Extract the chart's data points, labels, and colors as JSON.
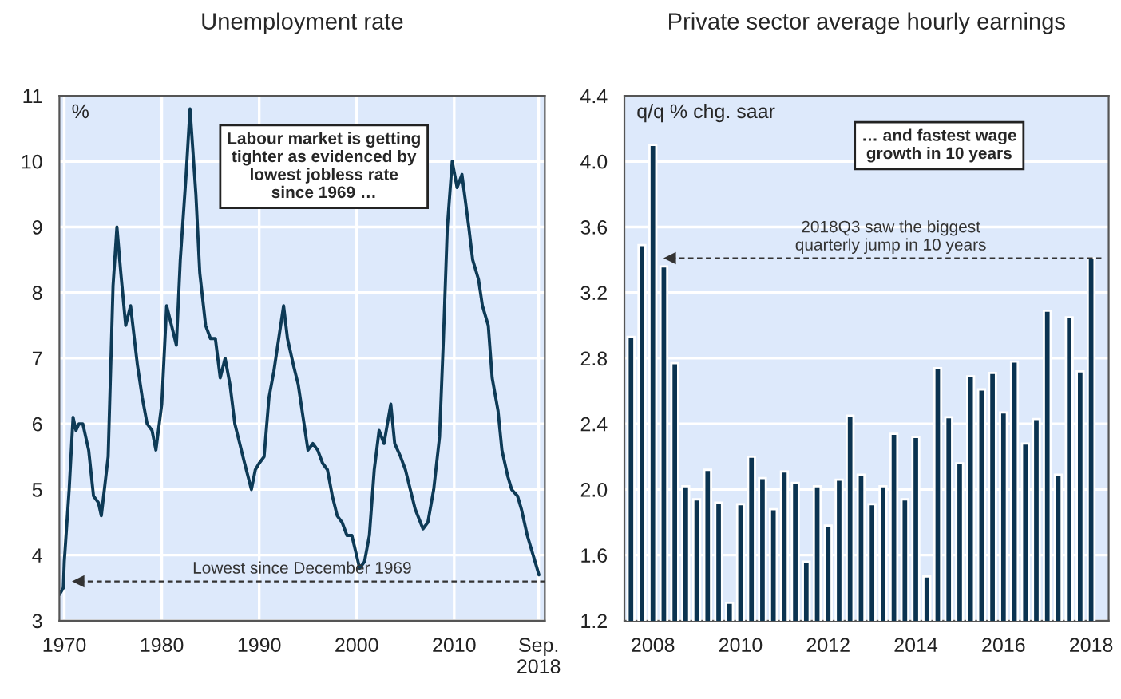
{
  "chart_data": [
    {
      "type": "line",
      "title": "Unemployment rate",
      "ylabel": "%",
      "x": [
        1969.5,
        1969.9,
        1970.0,
        1970.5,
        1970.9,
        1971.2,
        1971.5,
        1971.9,
        1972.5,
        1973.0,
        1973.5,
        1973.8,
        1974.5,
        1975.0,
        1975.4,
        1975.8,
        1976.3,
        1976.8,
        1977.5,
        1978.0,
        1978.5,
        1979.0,
        1979.4,
        1980.0,
        1980.5,
        1981.0,
        1981.5,
        1981.9,
        1982.5,
        1982.9,
        1983.5,
        1983.9,
        1984.5,
        1985.0,
        1985.5,
        1986.0,
        1986.5,
        1987.0,
        1987.5,
        1988.0,
        1988.5,
        1989.2,
        1989.6,
        1990.0,
        1990.5,
        1991.0,
        1991.5,
        1992.0,
        1992.5,
        1992.9,
        1993.5,
        1994.0,
        1994.5,
        1995.0,
        1995.5,
        1996.0,
        1996.5,
        1997.0,
        1997.5,
        1998.0,
        1998.5,
        1999.0,
        1999.5,
        2000.3,
        2000.8,
        2001.3,
        2001.8,
        2002.3,
        2002.8,
        2003.5,
        2003.9,
        2004.5,
        2005.0,
        2005.5,
        2006.0,
        2006.8,
        2007.3,
        2007.9,
        2008.5,
        2008.9,
        2009.3,
        2009.8,
        2010.3,
        2010.8,
        2011.5,
        2011.9,
        2012.5,
        2012.9,
        2013.5,
        2013.9,
        2014.5,
        2014.9,
        2015.5,
        2015.9,
        2016.5,
        2016.9,
        2017.5,
        2017.9,
        2018.3,
        2018.7
      ],
      "series": [
        {
          "color": "#0d3a56",
          "values": [
            3.4,
            3.5,
            3.9,
            5.0,
            6.1,
            5.9,
            6.0,
            6.0,
            5.6,
            4.9,
            4.8,
            4.6,
            5.5,
            8.1,
            9.0,
            8.3,
            7.5,
            7.8,
            6.9,
            6.4,
            6.0,
            5.9,
            5.6,
            6.3,
            7.8,
            7.5,
            7.2,
            8.5,
            9.8,
            10.8,
            9.5,
            8.3,
            7.5,
            7.3,
            7.3,
            6.7,
            7.0,
            6.6,
            6.0,
            5.7,
            5.4,
            5.0,
            5.3,
            5.4,
            5.5,
            6.4,
            6.8,
            7.3,
            7.8,
            7.3,
            6.9,
            6.6,
            6.1,
            5.6,
            5.7,
            5.6,
            5.4,
            5.3,
            4.9,
            4.6,
            4.5,
            4.3,
            4.3,
            3.8,
            3.9,
            4.3,
            5.3,
            5.9,
            5.7,
            6.3,
            5.7,
            5.5,
            5.3,
            5.0,
            4.7,
            4.4,
            4.5,
            5.0,
            5.8,
            7.3,
            9.0,
            10.0,
            9.6,
            9.8,
            9.0,
            8.5,
            8.2,
            7.8,
            7.5,
            6.7,
            6.2,
            5.6,
            5.2,
            5.0,
            4.9,
            4.7,
            4.3,
            4.1,
            3.9,
            3.7
          ]
        }
      ],
      "xlim": [
        1969.5,
        2019.3
      ],
      "xticks": [
        1970,
        1980,
        1990,
        2000,
        2010,
        {
          "value": 2018.67,
          "label": "Sep.\n2018"
        }
      ],
      "ylim": [
        3,
        11
      ],
      "yticks": [
        3,
        4,
        5,
        6,
        7,
        8,
        9,
        10,
        11
      ],
      "grid": true,
      "ref_lines": [
        {
          "axis": "y",
          "value": 3.6,
          "label": "Lowest since December 1969",
          "line_style": "dashed",
          "color": "#333333"
        }
      ],
      "annotations": [
        "Labour market is getting\ntighter as evidenced by\nlowest jobless rate\nsince 1969 …"
      ]
    },
    {
      "type": "bar",
      "title": "Private sector average hourly earnings",
      "ylabel": "q/q % chg. saar",
      "x": [
        2007.5,
        2007.75,
        2008.0,
        2008.25,
        2008.5,
        2008.75,
        2009.0,
        2009.25,
        2009.5,
        2009.75,
        2010.0,
        2010.25,
        2010.5,
        2010.75,
        2011.0,
        2011.25,
        2011.5,
        2011.75,
        2012.0,
        2012.25,
        2012.5,
        2012.75,
        2013.0,
        2013.25,
        2013.5,
        2013.75,
        2014.0,
        2014.25,
        2014.5,
        2014.75,
        2015.0,
        2015.25,
        2015.5,
        2015.75,
        2016.0,
        2016.25,
        2016.5,
        2016.75,
        2017.0,
        2017.25,
        2017.5,
        2017.75,
        2018.0
      ],
      "series": [
        {
          "color": "#0b3350",
          "values": [
            2.93,
            3.49,
            4.1,
            3.36,
            2.77,
            2.02,
            1.94,
            2.12,
            1.92,
            1.31,
            1.91,
            2.2,
            2.07,
            1.88,
            2.11,
            2.04,
            1.56,
            2.02,
            1.78,
            2.06,
            2.45,
            2.09,
            1.91,
            2.02,
            2.34,
            1.94,
            2.32,
            1.47,
            2.74,
            2.44,
            2.16,
            2.69,
            2.61,
            2.71,
            2.47,
            2.78,
            2.28,
            2.43,
            3.09,
            2.09,
            3.05,
            2.72,
            3.41
          ]
        }
      ],
      "xlim": [
        2007.35,
        2018.4
      ],
      "xticks": [
        2008,
        2010,
        2012,
        2014,
        2016,
        2018
      ],
      "ylim": [
        1.2,
        4.4
      ],
      "yticks": [
        {
          "value": 1.2,
          "label": "1.2"
        },
        {
          "value": 1.6,
          "label": "1.6"
        },
        {
          "value": 2.0,
          "label": "2.0"
        },
        {
          "value": 2.4,
          "label": "2.4"
        },
        {
          "value": 2.8,
          "label": "2.8"
        },
        {
          "value": 3.2,
          "label": "3.2"
        },
        {
          "value": 3.6,
          "label": "3.6"
        },
        {
          "value": 4.0,
          "label": "4.0"
        },
        {
          "value": 4.4,
          "label": "4.4"
        }
      ],
      "grid": "y",
      "ref_lines": [
        {
          "axis": "y",
          "value": 3.41,
          "label": "2018Q3 saw the biggest\nquarterly jump in 10 years",
          "line_style": "dashed",
          "color": "#333333"
        }
      ],
      "annotations": [
        "… and fastest wage\ngrowth in 10 years"
      ]
    }
  ]
}
